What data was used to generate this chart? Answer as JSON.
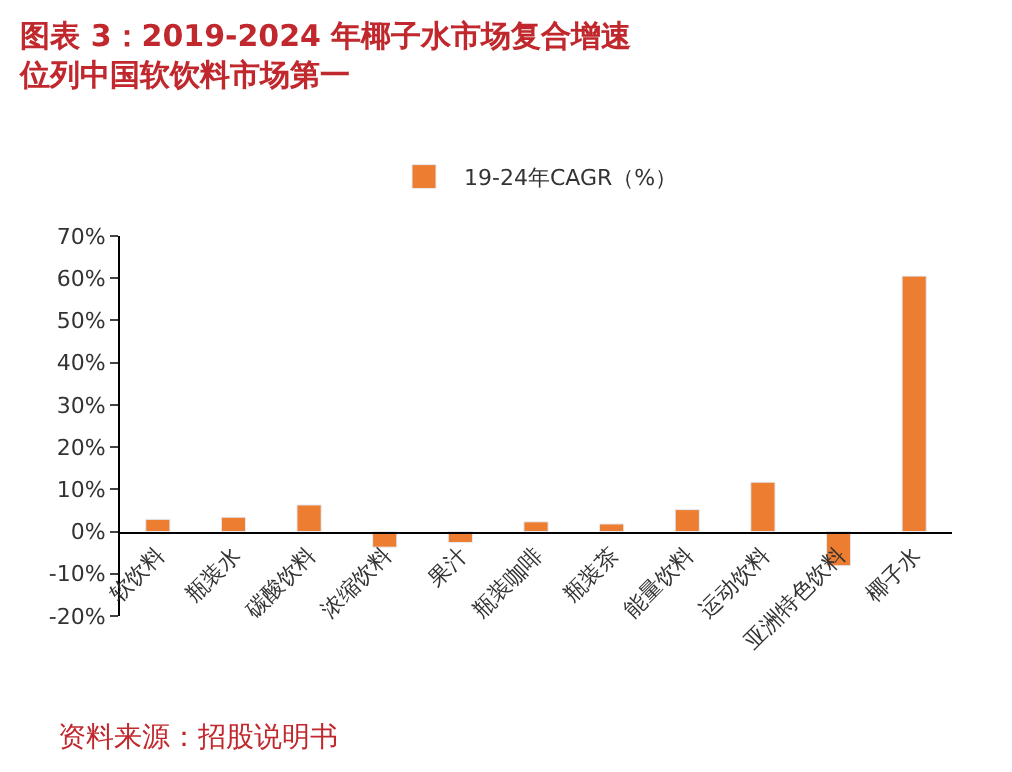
{
  "chart_data": {
    "type": "bar",
    "title": "图表 3：2019-2024 年椰子水市场复合增速位列中国软饮料市场第一",
    "categories": [
      "软饮料",
      "瓶装水",
      "碳酸饮料",
      "浓缩饮料",
      "果汁",
      "瓶装咖啡",
      "瓶装茶",
      "能量饮料",
      "运动饮料",
      "亚洲特色饮料",
      "椰子水"
    ],
    "series": [
      {
        "name": "19-24年CAGR（%）",
        "color": "#ed7d31",
        "values": [
          2.9,
          3.4,
          6.3,
          -3.7,
          -2.6,
          2.3,
          1.8,
          5.2,
          11.7,
          -8.1,
          60.5
        ]
      }
    ],
    "ylim": [
      -20,
      70
    ],
    "yticks": [
      {
        "value": -20,
        "label": "-20%"
      },
      {
        "value": -10,
        "label": "-10%"
      },
      {
        "value": 0,
        "label": "0%"
      },
      {
        "value": 10,
        "label": "10%"
      },
      {
        "value": 20,
        "label": "20%"
      },
      {
        "value": 30,
        "label": "30%"
      },
      {
        "value": 40,
        "label": "40%"
      },
      {
        "value": 50,
        "label": "50%"
      },
      {
        "value": 60,
        "label": "60%"
      },
      {
        "value": 70,
        "label": "70%"
      }
    ],
    "legend": "top",
    "annotations": [
      "资料来源：招股说明书"
    ]
  }
}
